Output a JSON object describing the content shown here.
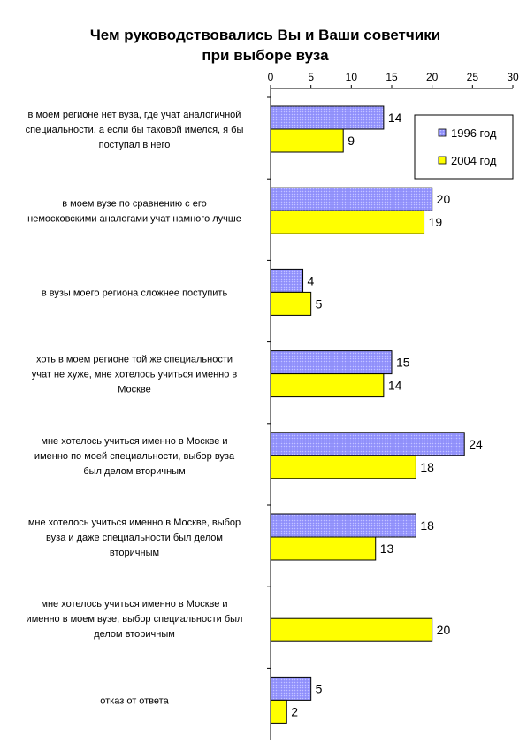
{
  "chart_data": {
    "type": "bar",
    "orientation": "horizontal",
    "title": "Чем руководствовались Вы и Ваши советчики при выборе вуза",
    "title_lines": [
      "Чем руководствовались Вы и Ваши советчики",
      "при выборе вуза"
    ],
    "xlim": [
      0,
      30
    ],
    "x_ticks": [
      0,
      5,
      10,
      15,
      20,
      25,
      30
    ],
    "x_tick_labels": [
      "0",
      "5",
      "10",
      "15",
      "20",
      "25",
      "30"
    ],
    "x_axis_position": "top",
    "grid": false,
    "legend_position": "top-right",
    "categories": [
      "в моем регионе нет вуза, где учат аналогичной специальности, а если бы таковой имелся, я бы поступал в него",
      "в моем вузе по сравнению с его немосковскими аналогами учат намного лучше",
      "в вузы моего региона сложнее поступить",
      "хоть в моем регионе той же специальности учат не хуже, мне хотелось учиться именно в Москве",
      "мне хотелось учиться именно в Москве и именно по моей специальности, выбор вуза был делом вторичным",
      "мне хотелось учиться именно в Москве, выбор вуза и даже специальности был делом вторичным",
      "мне хотелось учиться именно в Москве и именно в моем вузе, выбор специальности был делом вторичным",
      "отказ от ответа"
    ],
    "category_lines": [
      [
        "в моем регионе нет вуза, где учат аналогичной",
        "специальности, а если бы таковой имелся, я бы",
        "поступал в него"
      ],
      [
        "в моем вузе по сравнению с его",
        "немосковскими аналогами учат намного лучше"
      ],
      [
        "в вузы моего региона сложнее поступить"
      ],
      [
        "хоть в моем регионе той же специальности",
        "учат не хуже, мне хотелось учиться именно в",
        "Москве"
      ],
      [
        "мне хотелось учиться именно в Москве и",
        "именно по моей специальности, выбор вуза",
        "был делом вторичным"
      ],
      [
        "мне хотелось учиться именно в Москве, выбор",
        "вуза и даже специальности был делом",
        "вторичным"
      ],
      [
        "мне хотелось учиться именно в Москве и",
        "именно в моем вузе, выбор специальности был",
        "делом вторичным"
      ],
      [
        "отказ от ответа"
      ]
    ],
    "series": [
      {
        "name": "1996 год",
        "color": "#9999ff",
        "values": [
          14,
          20,
          4,
          15,
          24,
          18,
          null,
          5
        ],
        "value_labels": [
          "14",
          "20",
          "4",
          "15",
          "24",
          "18",
          "",
          "5"
        ]
      },
      {
        "name": "2004 год",
        "color": "#ffff00",
        "values": [
          9,
          19,
          5,
          14,
          18,
          13,
          20,
          2
        ],
        "value_labels": [
          "9",
          "19",
          "5",
          "14",
          "18",
          "13",
          "20",
          "2"
        ]
      }
    ]
  }
}
